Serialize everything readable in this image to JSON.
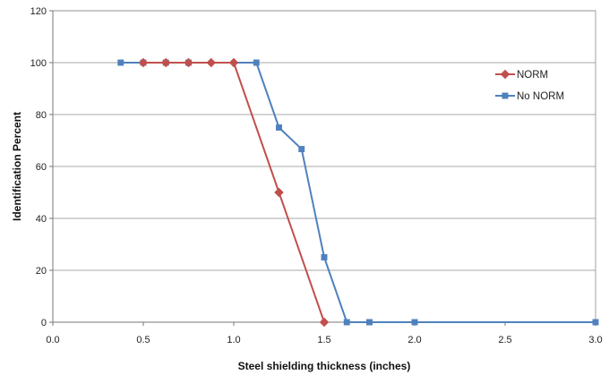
{
  "chart_data": {
    "type": "line",
    "title": "",
    "xlabel": "Steel shielding thickness (inches)",
    "ylabel": "Identification Percent",
    "xlim": [
      0,
      3
    ],
    "ylim": [
      0,
      120
    ],
    "xticks": [
      0,
      0.5,
      1.0,
      1.5,
      2.0,
      2.5,
      3.0
    ],
    "xtick_labels": [
      "0.0",
      "0.5",
      "1.0",
      "1.5",
      "2.0",
      "2.5",
      "3.0"
    ],
    "yticks": [
      0,
      20,
      40,
      60,
      80,
      100,
      120
    ],
    "ytick_labels": [
      "0",
      "20",
      "40",
      "60",
      "80",
      "100",
      "120"
    ],
    "grid": "horizontal",
    "legend_position": "right",
    "series": [
      {
        "name": "NORM",
        "color": "#c0504d",
        "marker": "diamond",
        "x": [
          0.5,
          0.625,
          0.75,
          0.875,
          1.0,
          1.25,
          1.5
        ],
        "y": [
          100,
          100,
          100,
          100,
          100,
          50,
          0
        ]
      },
      {
        "name": "No NORM",
        "color": "#4f81bd",
        "marker": "square",
        "x": [
          0.375,
          0.5,
          0.625,
          0.75,
          1.125,
          1.25,
          1.375,
          1.5,
          1.625,
          1.75,
          2.0,
          3.0
        ],
        "y": [
          100,
          100,
          100,
          100,
          100,
          75,
          66.7,
          25,
          0,
          0,
          0,
          0
        ]
      }
    ]
  }
}
